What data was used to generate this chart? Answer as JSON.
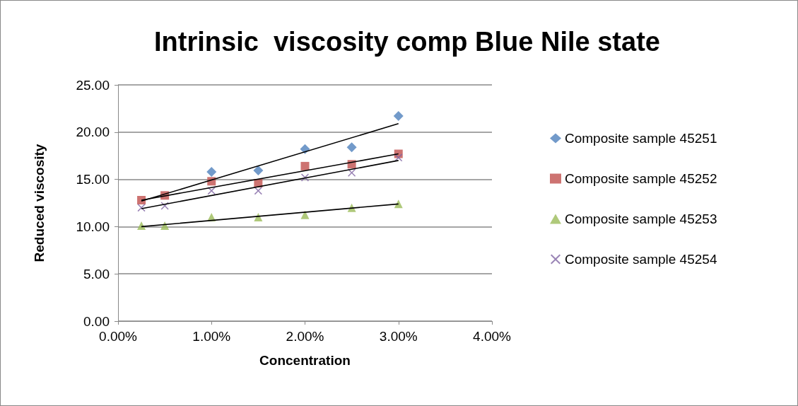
{
  "chart_data": {
    "type": "scatter",
    "title": "Intrinsic  viscosity comp Blue Nile state",
    "xlabel": "Concentration",
    "ylabel": "Reduced viscosity",
    "x": [
      0.25,
      0.5,
      1,
      1.5,
      2,
      2.5,
      3
    ],
    "xlim": [
      0,
      4
    ],
    "xticks": [
      {
        "value": 0,
        "label": "0.00%"
      },
      {
        "value": 1,
        "label": "1.00%"
      },
      {
        "value": 2,
        "label": "2.00%"
      },
      {
        "value": 3,
        "label": "3.00%"
      },
      {
        "value": 4,
        "label": "4.00%"
      }
    ],
    "ylim": [
      0,
      25
    ],
    "yticks": [
      {
        "value": 0,
        "label": "0.00"
      },
      {
        "value": 5,
        "label": "5.00"
      },
      {
        "value": 10,
        "label": "10.00"
      },
      {
        "value": 15,
        "label": "15.00"
      },
      {
        "value": 20,
        "label": "20.00"
      },
      {
        "value": 25,
        "label": "25.00"
      }
    ],
    "grid": "y",
    "legend": "right",
    "series": [
      {
        "name": "Composite sample 45251",
        "color": "#4f81bd",
        "marker": "diamond",
        "values": [
          null,
          null,
          15.8,
          15.95,
          18.2,
          18.4,
          21.7
        ]
      },
      {
        "name": "Composite sample 45252",
        "color": "#c0504d",
        "marker": "square",
        "values": [
          12.8,
          13.3,
          14.8,
          14.6,
          16.4,
          16.6,
          17.7
        ]
      },
      {
        "name": "Composite sample 45253",
        "color": "#9bbb59",
        "marker": "triangle",
        "values": [
          10.1,
          10.1,
          11.0,
          11.0,
          11.25,
          12.0,
          12.4
        ]
      },
      {
        "name": "Composite sample 45254",
        "color": "#8064a2",
        "marker": "cross",
        "values": [
          12.0,
          12.2,
          13.8,
          13.8,
          15.2,
          15.7,
          17.3
        ]
      },
      {
        "type": "line",
        "color": "#000000",
        "marker": "none",
        "values": [
          12.7,
          null,
          null,
          null,
          null,
          null,
          20.9
        ]
      },
      {
        "type": "line",
        "color": "#000000",
        "marker": "none",
        "values": [
          12.8,
          null,
          null,
          null,
          null,
          null,
          17.7
        ]
      },
      {
        "type": "line",
        "color": "#000000",
        "marker": "none",
        "values": [
          10.0,
          null,
          null,
          null,
          null,
          null,
          12.4
        ]
      },
      {
        "type": "line",
        "color": "#000000",
        "marker": "none",
        "values": [
          11.9,
          null,
          null,
          null,
          null,
          null,
          17.0
        ]
      }
    ]
  }
}
